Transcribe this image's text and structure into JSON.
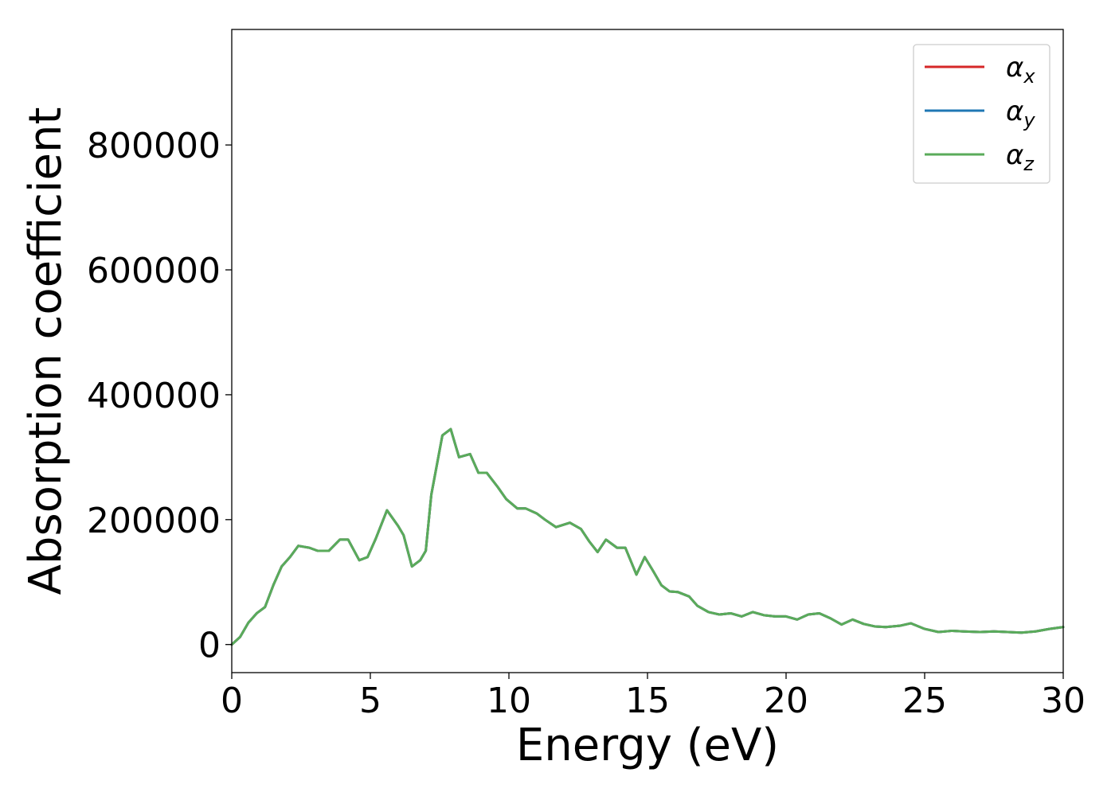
{
  "chart_data": {
    "type": "line",
    "xlabel": "Energy (eV)",
    "ylabel": "Absorption coefficient",
    "xlim": [
      0,
      30
    ],
    "ylim": [
      -45000,
      985000
    ],
    "xticks": [
      0,
      5,
      10,
      15,
      20,
      25,
      30
    ],
    "yticks": [
      0,
      200000,
      400000,
      600000,
      800000
    ],
    "xtick_labels": [
      "0",
      "5",
      "10",
      "15",
      "20",
      "25",
      "30"
    ],
    "ytick_labels": [
      "0",
      "200000",
      "400000",
      "600000",
      "800000"
    ],
    "grid": false,
    "legend_position": "top-right",
    "series": [
      {
        "name": "α_x",
        "label_base": "α",
        "label_sub": "x",
        "color": "#d62728",
        "x": [
          0,
          0.3,
          0.6,
          0.9,
          1.2,
          1.5,
          1.8,
          2.1,
          2.4,
          2.8,
          3.1,
          3.5,
          3.9,
          4.2,
          4.6,
          4.9,
          5.2,
          5.6,
          6.0,
          6.2,
          6.5,
          6.8,
          7.0,
          7.2,
          7.6,
          7.9,
          8.2,
          8.6,
          8.9,
          9.2,
          9.6,
          9.9,
          10.3,
          10.6,
          11.0,
          11.3,
          11.7,
          12.2,
          12.6,
          12.9,
          13.2,
          13.5,
          13.9,
          14.2,
          14.6,
          14.9,
          15.2,
          15.5,
          15.8,
          16.1,
          16.5,
          16.8,
          17.2,
          17.6,
          18.0,
          18.4,
          18.8,
          19.2,
          19.6,
          20.0,
          20.4,
          20.8,
          21.2,
          21.6,
          22.0,
          22.4,
          22.8,
          23.2,
          23.6,
          24.1,
          24.5,
          25.0,
          25.5,
          26.0,
          26.4,
          27.0,
          27.5,
          28.0,
          28.5,
          29.0,
          29.5,
          30.0
        ],
        "y": [
          0,
          12000,
          35000,
          50000,
          60000,
          95000,
          125000,
          140000,
          158000,
          155000,
          150000,
          150000,
          168000,
          168000,
          135000,
          140000,
          170000,
          215000,
          190000,
          175000,
          125000,
          135000,
          150000,
          240000,
          335000,
          345000,
          300000,
          305000,
          275000,
          275000,
          252000,
          233000,
          218000,
          218000,
          210000,
          200000,
          188000,
          195000,
          185000,
          165000,
          148000,
          168000,
          155000,
          155000,
          112000,
          140000,
          118000,
          95000,
          85000,
          84000,
          77000,
          62000,
          52000,
          48000,
          50000,
          45000,
          52000,
          47000,
          45000,
          45000,
          40000,
          48000,
          50000,
          42000,
          32000,
          40000,
          33000,
          29000,
          28000,
          30000,
          34000,
          25000,
          20000,
          22000,
          21000,
          20000,
          21000,
          20000,
          19000,
          21000,
          25000,
          28000
        ]
      },
      {
        "name": "α_y",
        "label_base": "α",
        "label_sub": "y",
        "color": "#1f77b4",
        "x": [
          0,
          0.3,
          0.6,
          0.9,
          1.2,
          1.5,
          1.8,
          2.1,
          2.4,
          2.8,
          3.1,
          3.5,
          3.9,
          4.2,
          4.6,
          4.9,
          5.2,
          5.6,
          6.0,
          6.2,
          6.5,
          6.8,
          7.0,
          7.2,
          7.6,
          7.9,
          8.2,
          8.6,
          8.9,
          9.2,
          9.6,
          9.9,
          10.3,
          10.6,
          11.0,
          11.3,
          11.7,
          12.2,
          12.6,
          12.9,
          13.2,
          13.5,
          13.9,
          14.2,
          14.6,
          14.9,
          15.2,
          15.5,
          15.8,
          16.1,
          16.5,
          16.8,
          17.2,
          17.6,
          18.0,
          18.4,
          18.8,
          19.2,
          19.6,
          20.0,
          20.4,
          20.8,
          21.2,
          21.6,
          22.0,
          22.4,
          22.8,
          23.2,
          23.6,
          24.1,
          24.5,
          25.0,
          25.5,
          26.0,
          26.4,
          27.0,
          27.5,
          28.0,
          28.5,
          29.0,
          29.5,
          30.0
        ],
        "y": [
          0,
          12000,
          35000,
          50000,
          60000,
          95000,
          125000,
          140000,
          158000,
          155000,
          150000,
          150000,
          168000,
          168000,
          135000,
          140000,
          170000,
          215000,
          190000,
          175000,
          125000,
          135000,
          150000,
          240000,
          335000,
          345000,
          300000,
          305000,
          275000,
          275000,
          252000,
          233000,
          218000,
          218000,
          210000,
          200000,
          188000,
          195000,
          185000,
          165000,
          148000,
          168000,
          155000,
          155000,
          112000,
          140000,
          118000,
          95000,
          85000,
          84000,
          77000,
          62000,
          52000,
          48000,
          50000,
          45000,
          52000,
          47000,
          45000,
          45000,
          40000,
          48000,
          50000,
          42000,
          32000,
          40000,
          33000,
          29000,
          28000,
          30000,
          34000,
          25000,
          20000,
          22000,
          21000,
          20000,
          21000,
          20000,
          19000,
          21000,
          25000,
          28000
        ]
      },
      {
        "name": "α_z",
        "label_base": "α",
        "label_sub": "z",
        "color": "#5aab5a",
        "x": [
          0,
          0.3,
          0.6,
          0.9,
          1.2,
          1.5,
          1.8,
          2.1,
          2.4,
          2.8,
          3.1,
          3.5,
          3.9,
          4.2,
          4.6,
          4.9,
          5.2,
          5.6,
          6.0,
          6.2,
          6.5,
          6.8,
          7.0,
          7.2,
          7.6,
          7.9,
          8.2,
          8.6,
          8.9,
          9.2,
          9.6,
          9.9,
          10.3,
          10.6,
          11.0,
          11.3,
          11.7,
          12.2,
          12.6,
          12.9,
          13.2,
          13.5,
          13.9,
          14.2,
          14.6,
          14.9,
          15.2,
          15.5,
          15.8,
          16.1,
          16.5,
          16.8,
          17.2,
          17.6,
          18.0,
          18.4,
          18.8,
          19.2,
          19.6,
          20.0,
          20.4,
          20.8,
          21.2,
          21.6,
          22.0,
          22.4,
          22.8,
          23.2,
          23.6,
          24.1,
          24.5,
          25.0,
          25.5,
          26.0,
          26.4,
          27.0,
          27.5,
          28.0,
          28.5,
          29.0,
          29.5,
          30.0
        ],
        "y": [
          0,
          12000,
          35000,
          50000,
          60000,
          95000,
          125000,
          140000,
          158000,
          155000,
          150000,
          150000,
          168000,
          168000,
          135000,
          140000,
          170000,
          215000,
          190000,
          175000,
          125000,
          135000,
          150000,
          240000,
          335000,
          345000,
          300000,
          305000,
          275000,
          275000,
          252000,
          233000,
          218000,
          218000,
          210000,
          200000,
          188000,
          195000,
          185000,
          165000,
          148000,
          168000,
          155000,
          155000,
          112000,
          140000,
          118000,
          95000,
          85000,
          84000,
          77000,
          62000,
          52000,
          48000,
          50000,
          45000,
          52000,
          47000,
          45000,
          45000,
          40000,
          48000,
          50000,
          42000,
          32000,
          40000,
          33000,
          29000,
          28000,
          30000,
          34000,
          25000,
          20000,
          22000,
          21000,
          20000,
          21000,
          20000,
          19000,
          21000,
          25000,
          28000
        ]
      }
    ]
  }
}
